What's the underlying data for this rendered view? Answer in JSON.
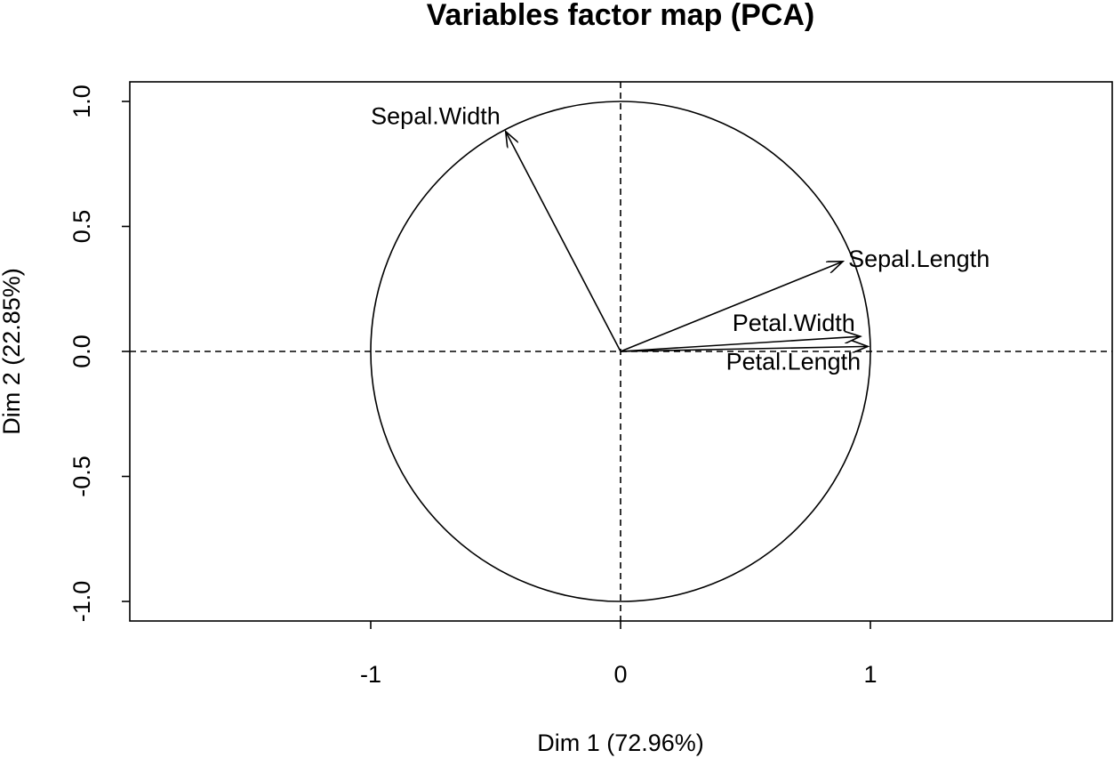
{
  "chart_data": {
    "type": "scatter",
    "subtype": "pca-correlation-circle",
    "title": "Variables factor map (PCA)",
    "xlabel": "Dim 1 (72.96%)",
    "ylabel": "Dim 2 (22.85%)",
    "xlim": [
      -1.97,
      1.97
    ],
    "ylim": [
      -1.08,
      1.08
    ],
    "xticks": [
      -1,
      0,
      1
    ],
    "xtick_labels": [
      "-1",
      "0",
      "1"
    ],
    "yticks": [
      -1.0,
      -0.5,
      0.0,
      0.5,
      1.0
    ],
    "ytick_labels": [
      "-1.0",
      "-0.5",
      "0.0",
      "0.5",
      "1.0"
    ],
    "unit_circle": true,
    "reference_lines": [
      0,
      0
    ],
    "grid": false,
    "legend": "none",
    "variables": [
      {
        "name": "Sepal.Length",
        "x": 0.89,
        "y": 0.36
      },
      {
        "name": "Sepal.Width",
        "x": -0.46,
        "y": 0.88
      },
      {
        "name": "Petal.Length",
        "x": 0.99,
        "y": 0.02
      },
      {
        "name": "Petal.Width",
        "x": 0.96,
        "y": 0.06
      }
    ]
  }
}
